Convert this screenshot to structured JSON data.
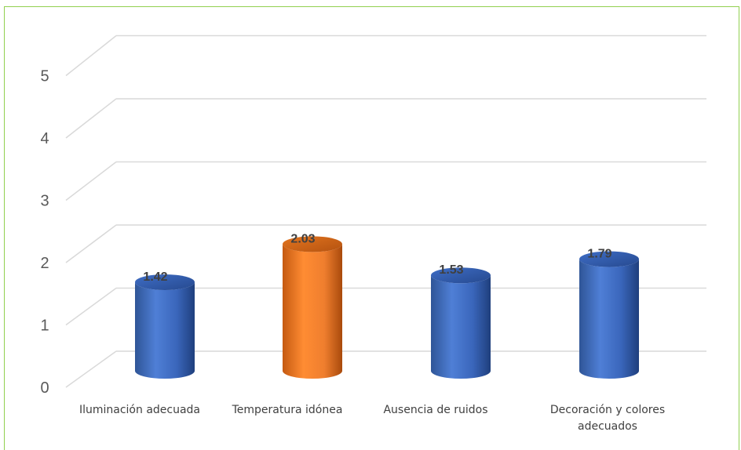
{
  "chart_data": {
    "type": "bar",
    "style": "3d-cylinder",
    "categories": [
      "Iluminación adecuada",
      "Temperatura idónea",
      "Ausencia de ruidos",
      "Decoración y colores adecuados"
    ],
    "category_lines": [
      [
        "Iluminación adecuada"
      ],
      [
        "Temperatura idónea"
      ],
      [
        "Ausencia de ruidos"
      ],
      [
        "Decoración y colores",
        "adecuados"
      ]
    ],
    "values": [
      1.42,
      2.03,
      1.53,
      1.79
    ],
    "data_labels": [
      "1.42",
      "2.03",
      "1.53",
      "1.79"
    ],
    "highlight_index": 1,
    "colors": {
      "default": "#4472c4",
      "highlight": "#ed7d31",
      "grid": "#d9d9d9",
      "frame": "#92d050"
    },
    "ylim": [
      0,
      5
    ],
    "yticks": [
      "0",
      "1",
      "2",
      "3",
      "4",
      "5"
    ],
    "grid": true,
    "legend": "none"
  }
}
